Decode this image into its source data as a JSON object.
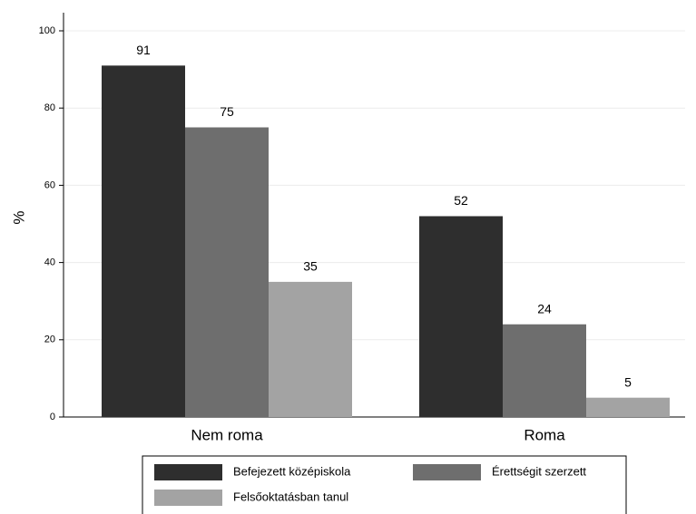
{
  "chart_data": {
    "type": "bar",
    "y_label": "%",
    "categories": [
      "Nem roma",
      "Roma"
    ],
    "series": [
      {
        "name": "Befejezett középiskola",
        "color": "#2e2e2e",
        "values": [
          91,
          52
        ]
      },
      {
        "name": "Érettségit szerzett",
        "color": "#6e6e6e",
        "values": [
          75,
          24
        ]
      },
      {
        "name": "Felsőoktatásban tanul",
        "color": "#a3a3a3",
        "values": [
          35,
          5
        ]
      }
    ],
    "ylim": [
      0,
      100
    ],
    "yticks": [
      0,
      20,
      40,
      60,
      80,
      100
    ],
    "grid": true
  }
}
